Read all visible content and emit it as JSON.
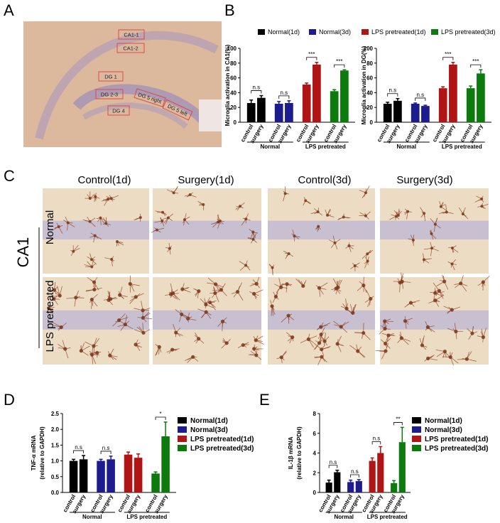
{
  "panel_labels": [
    "A",
    "B",
    "C",
    "D",
    "E"
  ],
  "panel_a": {
    "regions": [
      "CA1-1",
      "CA1-2",
      "DG 1",
      "DG 2-3",
      "DG 5 right",
      "DG 5 left",
      "DG 4"
    ]
  },
  "panel_c": {
    "region": "CA1",
    "columns": [
      "Control(1d)",
      "Surgery(1d)",
      "Control(3d)",
      "Surgery(3d)"
    ],
    "rows": [
      "Normal",
      "LPS pretreated"
    ]
  },
  "chart_data": [
    {
      "type": "bar",
      "ylabel": "Microglia activation in CA1(%)",
      "categories": [
        "control",
        "surgery"
      ],
      "groups": [
        "Normal",
        "LPS pretreated"
      ],
      "ylim": [
        0,
        100
      ],
      "yticks": [
        0,
        20,
        40,
        60,
        80,
        100
      ],
      "legend": "top",
      "series": [
        {
          "name": "Normal(1d)",
          "color": "#000000",
          "values": [
            26,
            33
          ],
          "errors": [
            4,
            3
          ]
        },
        {
          "name": "Normal(3d)",
          "color": "#1c1c8e",
          "values": [
            25,
            26
          ],
          "errors": [
            3,
            3
          ]
        },
        {
          "name": "LPS pretreated(1d)",
          "color": "#b01414",
          "values": [
            51,
            78
          ],
          "errors": [
            2,
            3
          ]
        },
        {
          "name": "LPS pretreated(3d)",
          "color": "#0c7a0c",
          "values": [
            42,
            70
          ],
          "errors": [
            2,
            1
          ]
        }
      ],
      "significance": [
        "n.s",
        "n.s",
        "***",
        "***"
      ]
    },
    {
      "type": "bar",
      "ylabel": "Microglia activation in DG(%)",
      "categories": [
        "control",
        "surgery"
      ],
      "groups": [
        "Normal",
        "LPS pretreated"
      ],
      "ylim": [
        0,
        100
      ],
      "yticks": [
        0,
        20,
        40,
        60,
        80,
        100
      ],
      "series": [
        {
          "color": "#000000",
          "values": [
            25,
            29
          ],
          "errors": [
            2,
            3
          ]
        },
        {
          "color": "#1c1c8e",
          "values": [
            25,
            22
          ],
          "errors": [
            1,
            1
          ]
        },
        {
          "color": "#b01414",
          "values": [
            46,
            78
          ],
          "errors": [
            2,
            3
          ]
        },
        {
          "color": "#0c7a0c",
          "values": [
            46,
            66
          ],
          "errors": [
            3,
            5
          ]
        }
      ],
      "significance": [
        "n.s",
        "n.s",
        "***",
        "***"
      ]
    },
    {
      "type": "bar",
      "ylabel": [
        "TNF-α mRNA",
        "(relative to GAPDH)"
      ],
      "categories": [
        "control",
        "surgery"
      ],
      "groups": [
        "Normal",
        "LPS pretreated"
      ],
      "ylim": [
        0,
        2.5
      ],
      "yticks": [
        {
          "value": 0,
          "label": "0.0"
        },
        0.5,
        {
          "value": 1,
          "label": "1.0"
        },
        1.5,
        {
          "value": 2,
          "label": "2.0"
        },
        2.5
      ],
      "legend": "right",
      "series": [
        {
          "name": "Normal(1d)",
          "color": "#000000",
          "values": [
            1.0,
            1.05
          ],
          "errors": [
            0.05,
            0.12
          ]
        },
        {
          "name": "Normal(3d)",
          "color": "#1c1c8e",
          "values": [
            1.0,
            1.05
          ],
          "errors": [
            0.05,
            0.1
          ]
        },
        {
          "name": "LPS pretreated(1d)",
          "color": "#b01414",
          "values": [
            1.2,
            1.1
          ],
          "errors": [
            0.08,
            0.12
          ]
        },
        {
          "name": "LPS pretreated(3d)",
          "color": "#0c7a0c",
          "values": [
            0.6,
            1.78
          ],
          "errors": [
            0.05,
            0.45
          ]
        }
      ],
      "significance": [
        "n.s",
        "n.s",
        null,
        "*"
      ]
    },
    {
      "type": "bar",
      "ylabel": [
        "IL-1β mRNA",
        "(relative to GAPDH)"
      ],
      "categories": [
        "control",
        "surgery"
      ],
      "groups": [
        "Normal",
        "LPS pretreated"
      ],
      "ylim": [
        0,
        8
      ],
      "yticks": [
        0,
        2,
        4,
        6,
        8
      ],
      "legend": "right",
      "series": [
        {
          "name": "Normal(1d)",
          "color": "#000000",
          "values": [
            1.0,
            2.05
          ],
          "errors": [
            0.25,
            0.2
          ]
        },
        {
          "name": "Normal(3d)",
          "color": "#1c1c8e",
          "values": [
            1.05,
            1.15
          ],
          "errors": [
            0.2,
            0.15
          ]
        },
        {
          "name": "LPS pretreated(1d)",
          "color": "#b01414",
          "values": [
            3.2,
            4.0
          ],
          "errors": [
            0.3,
            0.65
          ]
        },
        {
          "name": "LPS pretreated(3d)",
          "color": "#0c7a0c",
          "values": [
            0.95,
            5.1
          ],
          "errors": [
            0.25,
            1.5
          ]
        }
      ],
      "significance": [
        "n.s",
        "n.s",
        "n.s",
        "**"
      ]
    }
  ]
}
